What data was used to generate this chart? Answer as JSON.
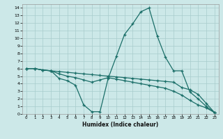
{
  "xlabel": "Humidex (Indice chaleur)",
  "bg_color": "#cce8e8",
  "line_color": "#1a6e68",
  "grid_color": "#a8cccc",
  "xlim": [
    -0.5,
    23.5
  ],
  "ylim": [
    0,
    14.5
  ],
  "xticks": [
    0,
    1,
    2,
    3,
    4,
    5,
    6,
    7,
    8,
    9,
    10,
    11,
    12,
    13,
    14,
    15,
    16,
    17,
    18,
    19,
    20,
    21,
    22,
    23
  ],
  "yticks": [
    0,
    1,
    2,
    3,
    4,
    5,
    6,
    7,
    8,
    9,
    10,
    11,
    12,
    13,
    14
  ],
  "line1_x": [
    0,
    1,
    2,
    3,
    4,
    5,
    6,
    7,
    8,
    9,
    10,
    11,
    12,
    13,
    14,
    15,
    16,
    17,
    18,
    19,
    20,
    21,
    22,
    23
  ],
  "line1_y": [
    6.0,
    6.0,
    5.8,
    5.7,
    5.6,
    5.5,
    5.4,
    5.3,
    5.2,
    5.1,
    5.0,
    4.9,
    4.8,
    4.7,
    4.6,
    4.5,
    4.4,
    4.3,
    4.2,
    3.5,
    3.2,
    2.6,
    1.4,
    0.2
  ],
  "line2_x": [
    0,
    1,
    2,
    3,
    4,
    5,
    6,
    7,
    8,
    9,
    10,
    11,
    12,
    13,
    14,
    15,
    16,
    17,
    18,
    19,
    20,
    21,
    22,
    23
  ],
  "line2_y": [
    6.0,
    6.0,
    5.8,
    5.7,
    4.7,
    4.4,
    3.8,
    1.2,
    0.3,
    0.3,
    4.7,
    7.6,
    10.5,
    11.9,
    13.5,
    14.0,
    10.3,
    7.5,
    5.7,
    5.7,
    2.9,
    2.0,
    1.0,
    0.2
  ],
  "line3_x": [
    0,
    1,
    2,
    3,
    4,
    5,
    6,
    7,
    8,
    9,
    10,
    11,
    12,
    13,
    14,
    15,
    16,
    17,
    18,
    19,
    20,
    21,
    22,
    23
  ],
  "line3_y": [
    6.0,
    6.0,
    5.8,
    5.7,
    5.3,
    5.0,
    4.8,
    4.5,
    4.2,
    4.5,
    4.8,
    4.6,
    4.4,
    4.2,
    4.0,
    3.8,
    3.6,
    3.4,
    3.0,
    2.5,
    1.8,
    1.2,
    0.8,
    0.2
  ]
}
